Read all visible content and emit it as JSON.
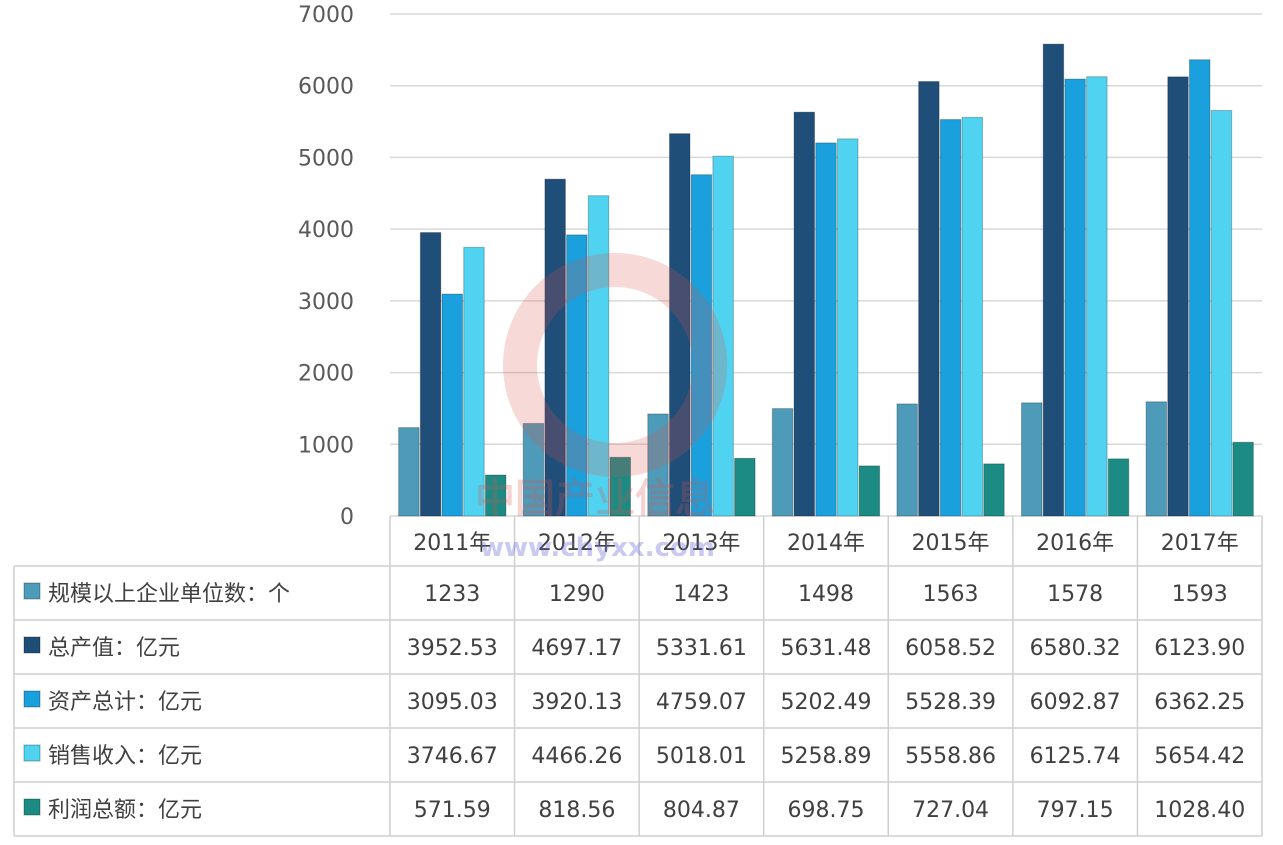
{
  "watermark": {
    "text": "中国产业信息",
    "url": "www.chyxx.com"
  },
  "colors": {
    "units": "#4d9bb8",
    "output": "#1f4e79",
    "assets": "#1aa0dc",
    "sales": "#4fd3f0",
    "profit": "#1b8b84",
    "grid": "#d9d9d9"
  },
  "chart_data": {
    "type": "bar",
    "categories": [
      "2011年",
      "2012年",
      "2013年",
      "2014年",
      "2015年",
      "2016年",
      "2017年"
    ],
    "ylim": [
      0,
      7000
    ],
    "yticks": [
      "0",
      "1000",
      "2000",
      "3000",
      "4000",
      "5000",
      "6000",
      "7000"
    ],
    "grid": true,
    "legend": "data-table",
    "series": [
      {
        "key": "units",
        "name": "规模以上企业单位数：个",
        "values": [
          1233,
          1290,
          1423,
          1498,
          1563,
          1578,
          1593
        ],
        "labels": [
          "1233",
          "1290",
          "1423",
          "1498",
          "1563",
          "1578",
          "1593"
        ]
      },
      {
        "key": "output",
        "name": "总产值：亿元",
        "values": [
          3952.53,
          4697.17,
          5331.61,
          5631.48,
          6058.52,
          6580.32,
          6123.9
        ],
        "labels": [
          "3952.53",
          "4697.17",
          "5331.61",
          "5631.48",
          "6058.52",
          "6580.32",
          "6123.90"
        ]
      },
      {
        "key": "assets",
        "name": "资产总计：亿元",
        "values": [
          3095.03,
          3920.13,
          4759.07,
          5202.49,
          5528.39,
          6092.87,
          6362.25
        ],
        "labels": [
          "3095.03",
          "3920.13",
          "4759.07",
          "5202.49",
          "5528.39",
          "6092.87",
          "6362.25"
        ]
      },
      {
        "key": "sales",
        "name": "销售收入：亿元",
        "values": [
          3746.67,
          4466.26,
          5018.01,
          5258.89,
          5558.86,
          6125.74,
          5654.42
        ],
        "labels": [
          "3746.67",
          "4466.26",
          "5018.01",
          "5258.89",
          "5558.86",
          "6125.74",
          "5654.42"
        ]
      },
      {
        "key": "profit",
        "name": "利润总额：亿元",
        "values": [
          571.59,
          818.56,
          804.87,
          698.75,
          727.04,
          797.15,
          1028.4
        ],
        "labels": [
          "571.59",
          "818.56",
          "804.87",
          "698.75",
          "727.04",
          "797.15",
          "1028.40"
        ]
      }
    ]
  }
}
